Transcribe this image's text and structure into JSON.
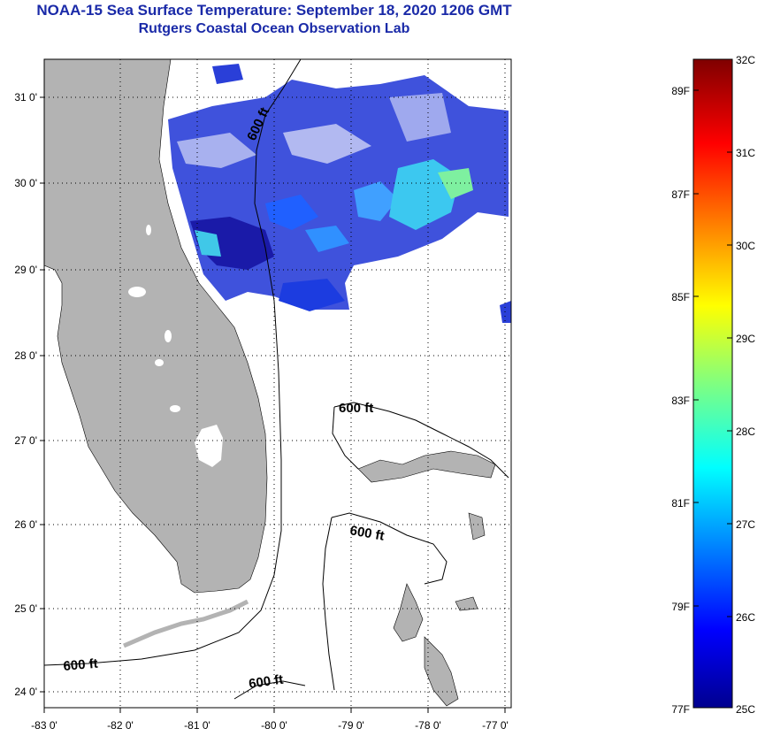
{
  "title": "NOAA-15 Sea Surface Temperature:  September 18, 2020 1206 GMT",
  "subtitle": "Rutgers Coastal Ocean Observation Lab",
  "lon_ticks": [
    "-83 0'",
    "-82 0'",
    "-81 0'",
    "-80 0'",
    "-79 0'",
    "-78 0'",
    "-77 0'"
  ],
  "lat_ticks": [
    "31 0'",
    "30 0'",
    "29 0'",
    "28 0'",
    "27 0'",
    "26 0'",
    "25 0'",
    "24 0'"
  ],
  "contour_label": "600 ft",
  "colorbar": {
    "celsius": [
      "32C",
      "31C",
      "30C",
      "29C",
      "28C",
      "27C",
      "26C",
      "25C"
    ],
    "fahrenheit": [
      "89F",
      "87F",
      "85F",
      "83F",
      "81F",
      "79F",
      "77F"
    ]
  },
  "colors": {
    "land": "#b3b3b3",
    "title": "#1a2aa8",
    "sst_low": "#0a0a8f",
    "sst_high": "#7f0000"
  }
}
